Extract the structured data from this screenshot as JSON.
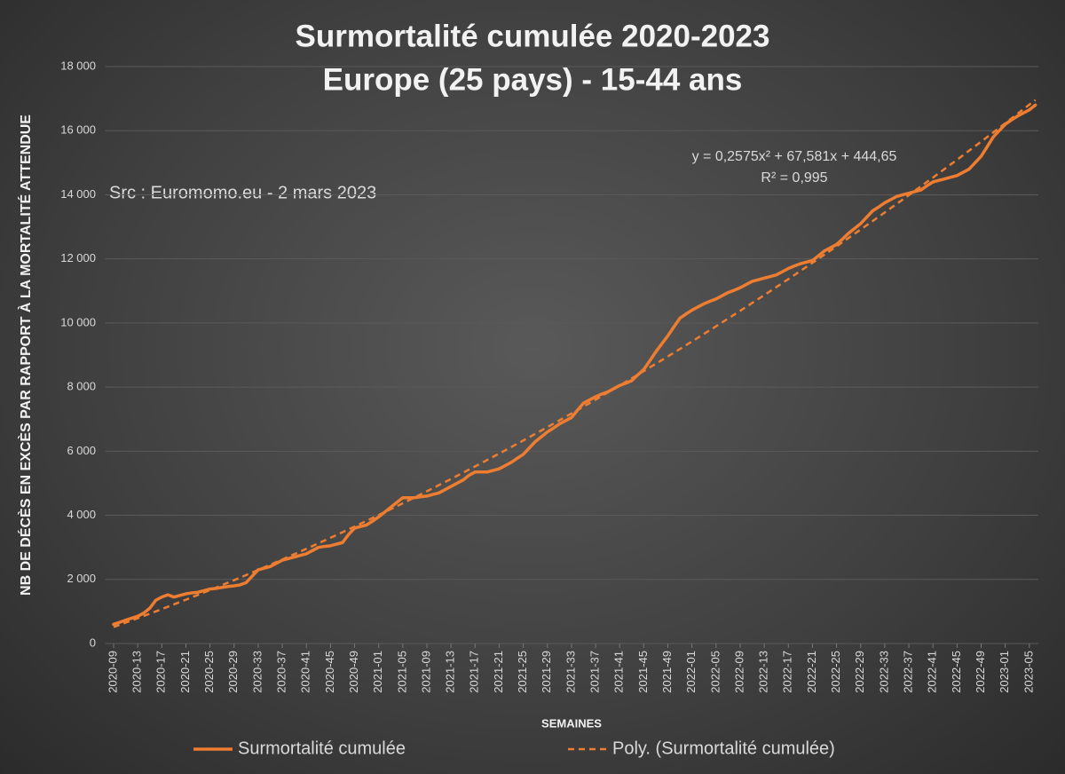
{
  "chart_data": {
    "type": "line",
    "title": "Surmortalité cumulée 2020-2023",
    "subtitle": "Europe (25 pays) - 15-44 ans",
    "source": "Src : Euromomo.eu  - 2 mars 2023",
    "equation": "y = 0,2575x² + 67,581x + 444,65",
    "r_squared": "R² = 0,995",
    "y_label": "NB DE DÉCÈS EN EXCÈS PAR RAPPORT À LA MORTALITÉ ATTENDUE",
    "x_label": "SEMAINES",
    "ylim": [
      0,
      18000
    ],
    "yticks": [
      0,
      {
        "value": 2000,
        "label": "2 000"
      },
      {
        "value": 4000,
        "label": "4 000"
      },
      {
        "value": 6000,
        "label": "6 000"
      },
      {
        "value": 8000,
        "label": "8 000"
      },
      {
        "value": 10000,
        "label": "10 000"
      },
      {
        "value": 12000,
        "label": "12 000"
      },
      {
        "value": 14000,
        "label": "14 000"
      },
      {
        "value": 16000,
        "label": "16 000"
      },
      {
        "value": 18000,
        "label": "18 000"
      }
    ],
    "grid": true,
    "legend": "bottom",
    "categories": [
      "2020-09",
      null,
      null,
      null,
      "2020-13",
      null,
      null,
      null,
      "2020-17",
      null,
      null,
      null,
      "2020-21",
      null,
      null,
      null,
      "2020-25",
      null,
      null,
      null,
      "2020-29",
      null,
      null,
      null,
      "2020-33",
      null,
      null,
      null,
      "2020-37",
      null,
      null,
      null,
      "2020-41",
      null,
      null,
      null,
      "2020-45",
      null,
      null,
      null,
      "2020-49",
      null,
      null,
      null,
      "2021-01",
      null,
      null,
      null,
      "2021-05",
      null,
      null,
      null,
      "2021-09",
      null,
      null,
      null,
      "2021-13",
      null,
      null,
      null,
      "2021-17",
      null,
      null,
      null,
      "2021-21",
      null,
      null,
      null,
      "2021-25",
      null,
      null,
      null,
      "2021-29",
      null,
      null,
      null,
      "2021-33",
      null,
      null,
      null,
      "2021-37",
      null,
      null,
      null,
      "2021-41",
      null,
      null,
      null,
      "2021-45",
      null,
      null,
      null,
      "2021-49",
      null,
      null,
      null,
      "2022-01",
      null,
      null,
      null,
      "2022-05",
      null,
      null,
      null,
      "2022-09",
      null,
      null,
      null,
      "2022-13",
      null,
      null,
      null,
      "2022-17",
      null,
      null,
      null,
      "2022-21",
      null,
      null,
      null,
      "2022-25",
      null,
      null,
      null,
      "2022-29",
      null,
      null,
      null,
      "2022-33",
      null,
      null,
      null,
      "2022-37",
      null,
      null,
      null,
      "2022-41",
      null,
      null,
      null,
      "2022-45",
      null,
      null,
      null,
      "2022-49",
      null,
      null,
      null,
      "2023-01",
      null,
      null,
      null,
      "2023-05",
      null
    ],
    "series": [
      {
        "name": "Surmortalité cumulée",
        "color": "#ed7d31",
        "dash": false,
        "values": [
          600,
          660,
          730,
          790,
          850,
          950,
          1100,
          1350,
          1450,
          1520,
          1450,
          1500,
          1550,
          1580,
          1600,
          1650,
          1700,
          1720,
          1750,
          1780,
          1800,
          1830,
          1900,
          2100,
          2300,
          2350,
          2400,
          2500,
          2600,
          2650,
          2700,
          2750,
          2800,
          2900,
          3000,
          3030,
          3050,
          3100,
          3150,
          3400,
          3600,
          3650,
          3700,
          3820,
          3950,
          4100,
          4250,
          4400,
          4550,
          4550,
          4550,
          4580,
          4600,
          4650,
          4700,
          4800,
          4900,
          5000,
          5100,
          5250,
          5350,
          5350,
          5350,
          5400,
          5450,
          5550,
          5650,
          5780,
          5900,
          6100,
          6300,
          6450,
          6600,
          6720,
          6850,
          6950,
          7050,
          7280,
          7500,
          7600,
          7700,
          7780,
          7850,
          7950,
          8050,
          8120,
          8200,
          8380,
          8550,
          8820,
          9100,
          9350,
          9600,
          9880,
          10150,
          10280,
          10400,
          10500,
          10600,
          10680,
          10750,
          10850,
          10950,
          11020,
          11100,
          11200,
          11300,
          11350,
          11400,
          11450,
          11500,
          11600,
          11700,
          11780,
          11850,
          11900,
          11950,
          12100,
          12250,
          12350,
          12450,
          12620,
          12800,
          12950,
          13100,
          13300,
          13500,
          13620,
          13750,
          13850,
          13950,
          14000,
          14050,
          14100,
          14150,
          14280,
          14400,
          14450,
          14500,
          14550,
          14600,
          14700,
          14800,
          15000,
          15200,
          15500,
          15800,
          16000,
          16200,
          16330,
          16450,
          16550,
          16650,
          16800
        ]
      },
      {
        "name": "Poly. (Surmortalité cumulée)",
        "color": "#ed7d31",
        "dash": true,
        "values": [
          512,
          581,
          651,
          720,
          789,
          860,
          931,
          1002,
          1074,
          1147,
          1220,
          1294,
          1367,
          1442,
          1517,
          1593,
          1668,
          1745,
          1823,
          1900,
          1977,
          2057,
          2136,
          2216,
          2295,
          2377,
          2458,
          2540,
          2621,
          2705,
          2788,
          2872,
          2955,
          3041,
          3126,
          3212,
          3298,
          3385,
          3473,
          3561,
          3648,
          3738,
          3828,
          3917,
          4007,
          4099,
          4191,
          4282,
          4374,
          4468,
          4562,
          4656,
          4750,
          4846,
          4942,
          5037,
          5133,
          5231,
          5329,
          5427,
          5525,
          5625,
          5725,
          5825,
          5925,
          6027,
          6129,
          6232,
          6334,
          6438,
          6542,
          6646,
          6750,
          6856,
          6963,
          7069,
          7175,
          7283,
          7392,
          7500,
          7608,
          7718,
          7829,
          7939,
          8050,
          8162,
          8274,
          8387,
          8499,
          8613,
          8728,
          8842,
          8957,
          9073,
          9190,
          9306,
          9423,
          9541,
          9660,
          9778,
          9897,
          10018,
          10138,
          10259,
          10380,
          10502,
          10625,
          10747,
          10870,
          10995,
          11120,
          11244,
          11369,
          11496,
          11623,
          11750,
          11877,
          12006,
          12134,
          12263,
          12392,
          12523,
          12654,
          12785,
          12916,
          13049,
          13182,
          13315,
          13448,
          13583,
          13718,
          13853,
          13988,
          14125,
          14262,
          14399,
          14536,
          14675,
          14814,
          14954,
          15093,
          15234,
          15375,
          15517,
          15658,
          15801,
          15944,
          16088,
          16231,
          16376,
          16522,
          16667,
          16812,
          16959
        ]
      }
    ]
  }
}
